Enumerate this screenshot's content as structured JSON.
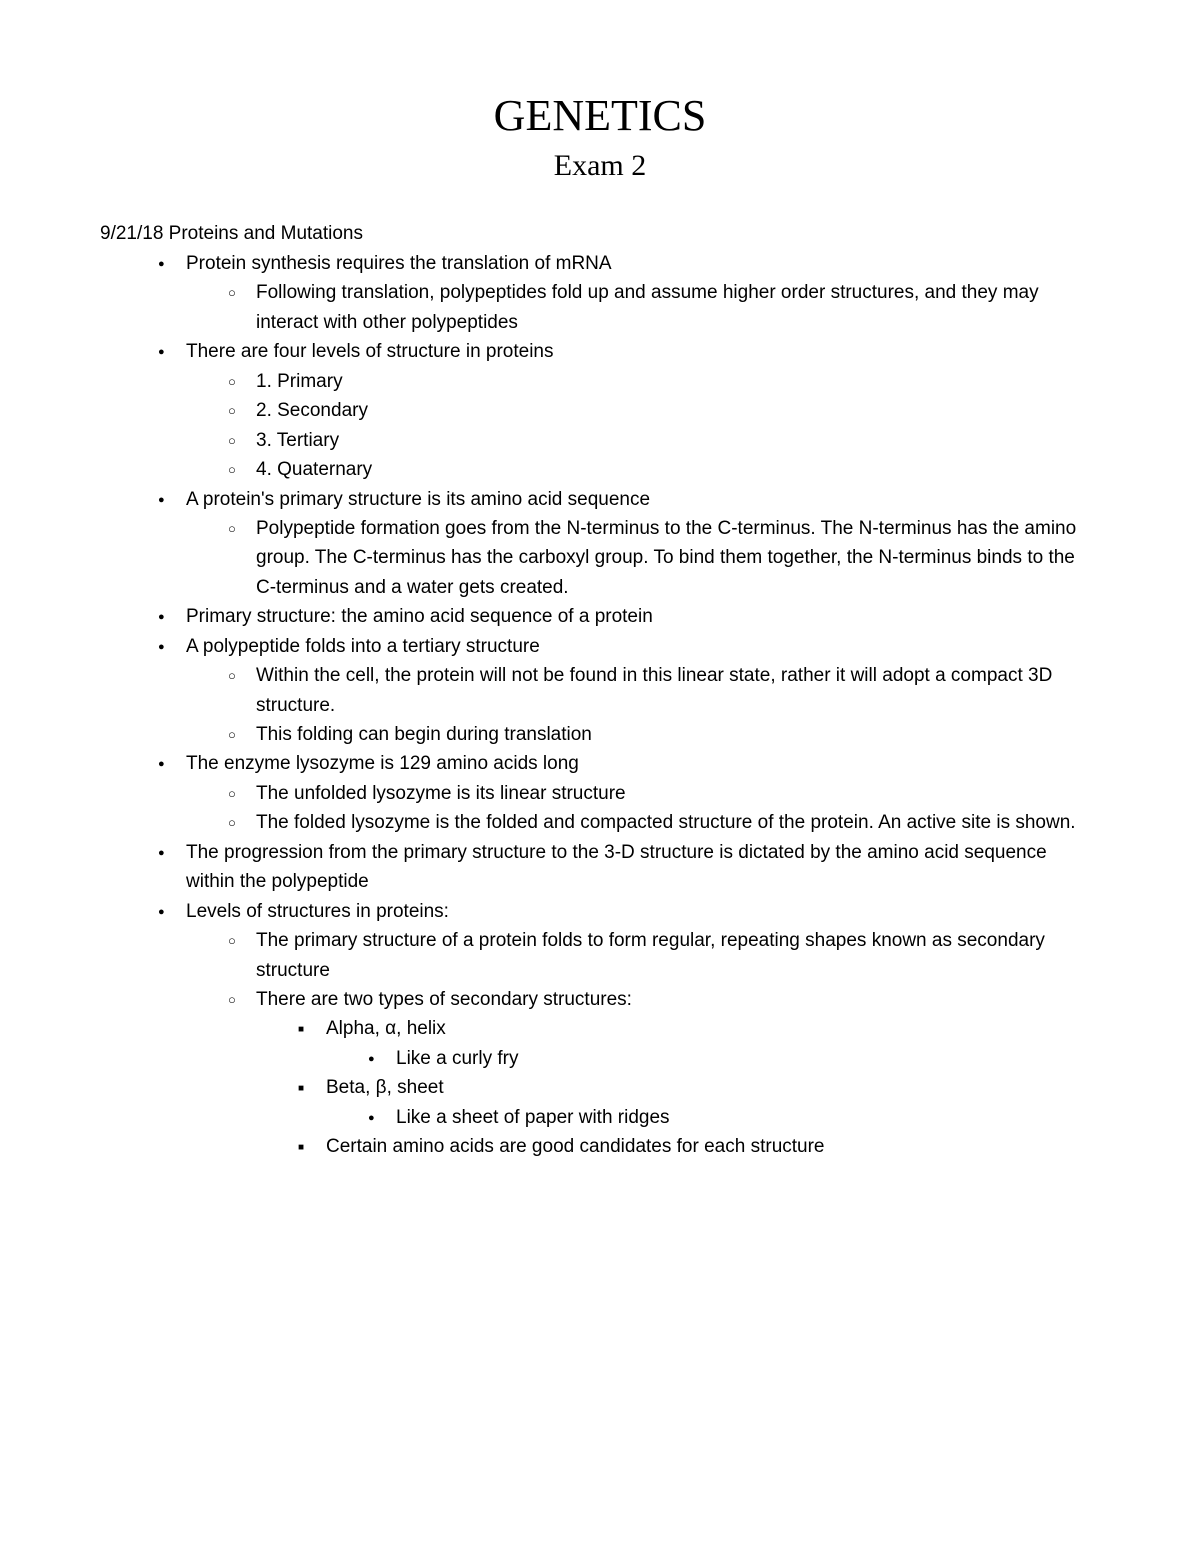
{
  "title": "GENETICS",
  "subtitle": "Exam 2",
  "dateHeading": "9/21/18 Proteins and Mutations",
  "items": [
    {
      "text": "Protein synthesis requires the translation of mRNA",
      "children": [
        {
          "text": "Following translation, polypeptides fold up and assume higher order structures, and they may interact with other polypeptides"
        }
      ]
    },
    {
      "text": "There are four levels of structure in proteins",
      "children": [
        {
          "text": "1. Primary"
        },
        {
          "text": "2. Secondary"
        },
        {
          "text": "3. Tertiary"
        },
        {
          "text": "4. Quaternary"
        }
      ]
    },
    {
      "text": "A protein's primary structure is its amino acid sequence",
      "children": [
        {
          "text": "Polypeptide formation goes from the N-terminus to the C-terminus. The N-terminus has the amino group. The C-terminus has the carboxyl group. To bind them together, the N-terminus binds to the C-terminus and a water gets created."
        }
      ]
    },
    {
      "text": "Primary structure: the amino acid sequence of a protein"
    },
    {
      "text": "A polypeptide folds into a tertiary structure",
      "children": [
        {
          "text": "Within the cell, the protein will not be found in this linear state, rather it will adopt a compact 3D structure."
        },
        {
          "text": "This folding can begin during translation"
        }
      ]
    },
    {
      "text": "The enzyme lysozyme is 129 amino acids long",
      "children": [
        {
          "text": "The unfolded lysozyme is its linear structure"
        },
        {
          "text": "The folded lysozyme is the folded and compacted structure of the protein. An active site is shown."
        }
      ]
    },
    {
      "text": "The progression from the primary structure to the 3-D structure is dictated by the amino acid sequence within the polypeptide"
    },
    {
      "text": "Levels of structures in proteins:",
      "children": [
        {
          "text": "The primary structure of a protein folds to form regular, repeating shapes known as secondary structure"
        },
        {
          "text": "There are two types of secondary structures:",
          "children": [
            {
              "text": "Alpha, α, helix",
              "children": [
                {
                  "text": "Like a curly fry"
                }
              ]
            },
            {
              "text": "Beta, β, sheet",
              "children": [
                {
                  "text": "Like a sheet of paper with ridges"
                }
              ]
            },
            {
              "text": "Certain amino acids are good candidates for each structure"
            }
          ]
        }
      ]
    }
  ]
}
